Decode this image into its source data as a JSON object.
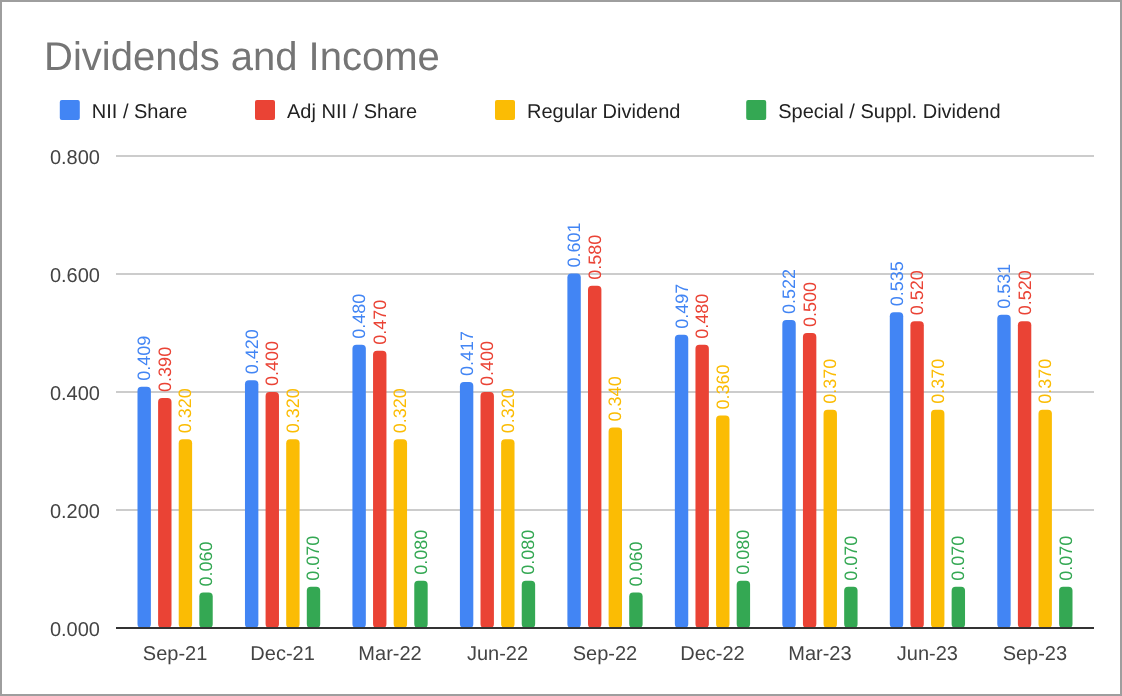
{
  "chart_data": {
    "type": "bar",
    "title": "Dividends and Income",
    "categories": [
      "Sep-21",
      "Dec-21",
      "Mar-22",
      "Jun-22",
      "Sep-22",
      "Dec-22",
      "Mar-23",
      "Jun-23",
      "Sep-23"
    ],
    "series": [
      {
        "name": "NII / Share",
        "color": "#4285f4",
        "values": [
          0.409,
          0.42,
          0.48,
          0.417,
          0.601,
          0.497,
          0.522,
          0.535,
          0.531
        ],
        "value_labels": [
          "0.409",
          "0.420",
          "0.480",
          "0.417",
          "0.601",
          "0.497",
          "0.522",
          "0.535",
          "0.531"
        ]
      },
      {
        "name": "Adj NII / Share",
        "color": "#ea4335",
        "values": [
          0.39,
          0.4,
          0.47,
          0.4,
          0.58,
          0.48,
          0.5,
          0.52,
          0.52
        ],
        "value_labels": [
          "0.390",
          "0.400",
          "0.470",
          "0.400",
          "0.580",
          "0.480",
          "0.500",
          "0.520",
          "0.520"
        ]
      },
      {
        "name": "Regular Dividend",
        "color": "#fbbc04",
        "values": [
          0.32,
          0.32,
          0.32,
          0.32,
          0.34,
          0.36,
          0.37,
          0.37,
          0.37
        ],
        "value_labels": [
          "0.320",
          "0.320",
          "0.320",
          "0.320",
          "0.340",
          "0.360",
          "0.370",
          "0.370",
          "0.370"
        ]
      },
      {
        "name": "Special / Suppl. Dividend",
        "color": "#34a853",
        "values": [
          0.06,
          0.07,
          0.08,
          0.08,
          0.06,
          0.08,
          0.07,
          0.07,
          0.07
        ],
        "value_labels": [
          "0.060",
          "0.070",
          "0.080",
          "0.080",
          "0.060",
          "0.080",
          "0.070",
          "0.070",
          "0.070"
        ]
      }
    ],
    "ylim": [
      0,
      0.8
    ],
    "yticks": [
      {
        "value": 0,
        "label": "0.000"
      },
      {
        "value": 0.2,
        "label": "0.200"
      },
      {
        "value": 0.4,
        "label": "0.400"
      },
      {
        "value": 0.6,
        "label": "0.600"
      },
      {
        "value": 0.8,
        "label": "0.800"
      }
    ],
    "grid": "y",
    "legend": "top"
  }
}
